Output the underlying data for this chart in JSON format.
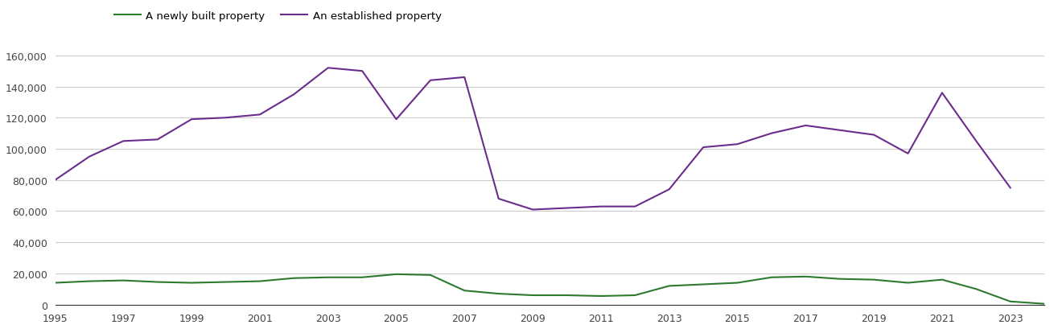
{
  "years": [
    1995,
    1996,
    1997,
    1998,
    1999,
    2000,
    2001,
    2002,
    2003,
    2004,
    2005,
    2006,
    2007,
    2008,
    2009,
    2010,
    2011,
    2012,
    2013,
    2014,
    2015,
    2016,
    2017,
    2018,
    2019,
    2020,
    2021,
    2022,
    2023,
    2024
  ],
  "new_homes": [
    14000,
    15000,
    15500,
    14500,
    14000,
    14500,
    15000,
    17000,
    17500,
    17500,
    19500,
    19000,
    9000,
    7000,
    6000,
    6000,
    5500,
    6000,
    12000,
    13000,
    14000,
    17500,
    18000,
    16500,
    16000,
    14000,
    16000,
    10000,
    2000,
    500
  ],
  "established_homes": [
    80000,
    95000,
    105000,
    106000,
    119000,
    120000,
    122000,
    135000,
    152000,
    150000,
    119000,
    144000,
    146000,
    68000,
    61000,
    62000,
    63000,
    63000,
    74000,
    101000,
    103000,
    110000,
    115000,
    112000,
    109000,
    97000,
    136000,
    105000,
    75000,
    null
  ],
  "new_color": "#2d7a2d",
  "established_color": "#6b2d8b",
  "legend_labels": [
    "A newly built property",
    "An established property"
  ],
  "ylim": [
    0,
    160000
  ],
  "y_tick_interval": 20000,
  "x_tick_start": 1995,
  "x_tick_interval": 2,
  "background_color": "#ffffff",
  "grid_color": "#cccccc",
  "spine_color": "#333333",
  "tick_label_color": "#444444",
  "tick_label_size": 9,
  "legend_fontsize": 9.5,
  "linewidth": 1.5
}
